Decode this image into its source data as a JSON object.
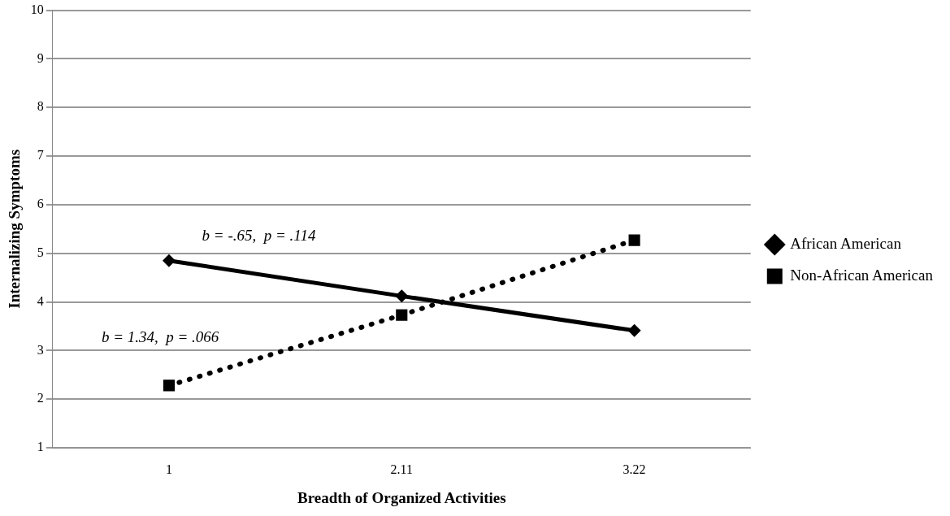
{
  "chart_data": {
    "type": "line",
    "xlabel": "Breadth of Organized Activities",
    "ylabel": "Internalizing Symptoms",
    "categories": [
      "1",
      "2.11",
      "3.22"
    ],
    "series": [
      {
        "name": "African American",
        "color": "#000000",
        "values": [
          4.85,
          4.12,
          3.41
        ],
        "marker": "diamond",
        "line_style": "solid"
      },
      {
        "name": "Non-African American",
        "color": "#000000",
        "values": [
          2.28,
          3.73,
          5.27
        ],
        "marker": "square",
        "line_style": "dotted"
      }
    ],
    "ylim": [
      1,
      10
    ],
    "yticks": [
      1,
      2,
      3,
      4,
      5,
      6,
      7,
      8,
      9,
      10
    ],
    "grid": "y",
    "legend": "right",
    "annotations": [
      "b = -.65,  p = .114",
      "b = 1.34,  p = .066"
    ]
  }
}
